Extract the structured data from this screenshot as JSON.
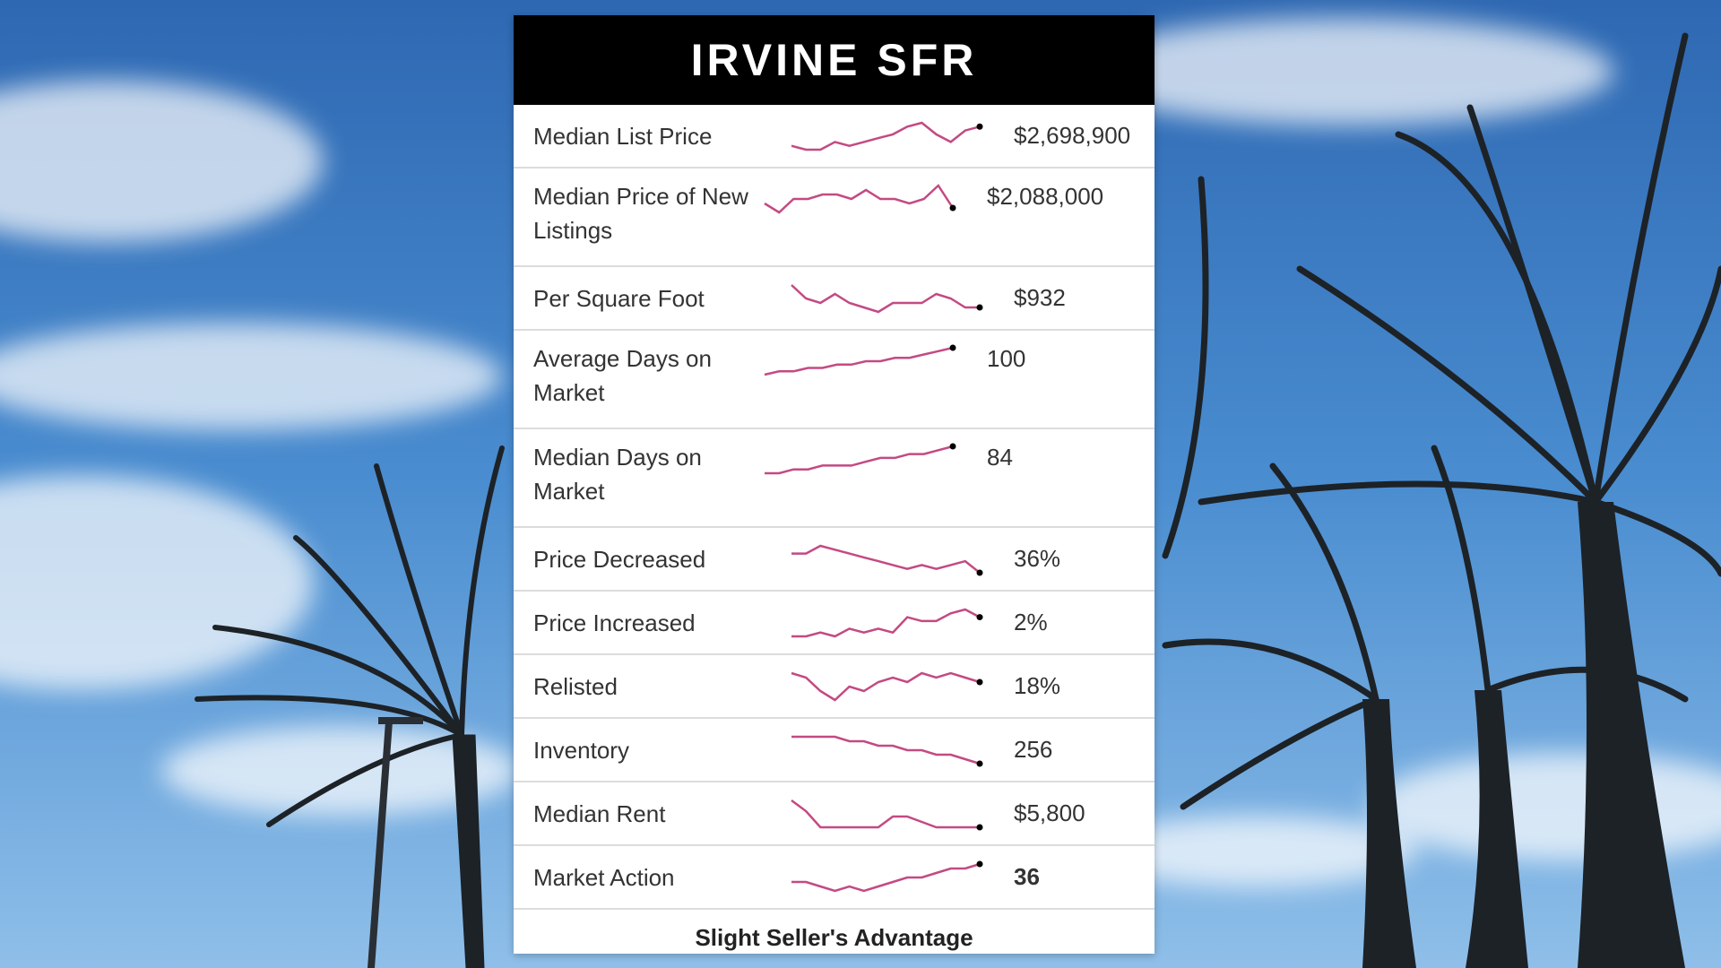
{
  "title": "IRVINE SFR",
  "colors": {
    "spark": "#c34a83",
    "header_bg": "#000000",
    "card_bg": "#ffffff"
  },
  "rows": [
    {
      "label": "Median List Price",
      "value": "$2,698,900",
      "trend": [
        2,
        1,
        1,
        3,
        2,
        3,
        4,
        5,
        7,
        8,
        5,
        3,
        6,
        7
      ]
    },
    {
      "label": "Median Price of New Listings",
      "value": "$2,088,000",
      "trend": [
        5,
        3,
        6,
        6,
        7,
        7,
        6,
        8,
        6,
        6,
        5,
        6,
        9,
        4
      ]
    },
    {
      "label": "Per Square Foot",
      "value": "$932",
      "trend": [
        9,
        6,
        5,
        7,
        5,
        4,
        3,
        5,
        5,
        5,
        7,
        6,
        4,
        4
      ]
    },
    {
      "label": "Average Days on Market",
      "value": "100",
      "trend": [
        1,
        2,
        2,
        3,
        3,
        4,
        4,
        5,
        5,
        6,
        6,
        7,
        8,
        9
      ]
    },
    {
      "label": "Median Days on Market",
      "value": "84",
      "trend": [
        1,
        1,
        2,
        2,
        3,
        3,
        3,
        4,
        5,
        5,
        6,
        6,
        7,
        8
      ]
    },
    {
      "label": "Price Decreased",
      "value": "36%",
      "trend": [
        7,
        7,
        9,
        8,
        7,
        6,
        5,
        4,
        3,
        4,
        3,
        4,
        5,
        2
      ]
    },
    {
      "label": "Price Increased",
      "value": "2%",
      "trend": [
        1,
        1,
        2,
        1,
        3,
        2,
        3,
        2,
        6,
        5,
        5,
        7,
        8,
        6
      ]
    },
    {
      "label": "Relisted",
      "value": "18%",
      "trend": [
        8,
        7,
        4,
        2,
        5,
        4,
        6,
        7,
        6,
        8,
        7,
        8,
        7,
        6
      ]
    },
    {
      "label": "Inventory",
      "value": "256",
      "trend": [
        9,
        9,
        9,
        9,
        8,
        8,
        7,
        7,
        6,
        6,
        5,
        5,
        4,
        3
      ]
    },
    {
      "label": "Median Rent",
      "value": "$5,800",
      "trend": [
        9,
        7,
        4,
        4,
        4,
        4,
        4,
        6,
        6,
        5,
        4,
        4,
        4,
        4
      ]
    },
    {
      "label": "Market Action",
      "value": "36",
      "trend": [
        4,
        4,
        3,
        2,
        3,
        2,
        3,
        4,
        5,
        5,
        6,
        7,
        7,
        8
      ]
    }
  ],
  "footer": "Slight Seller's Advantage"
}
